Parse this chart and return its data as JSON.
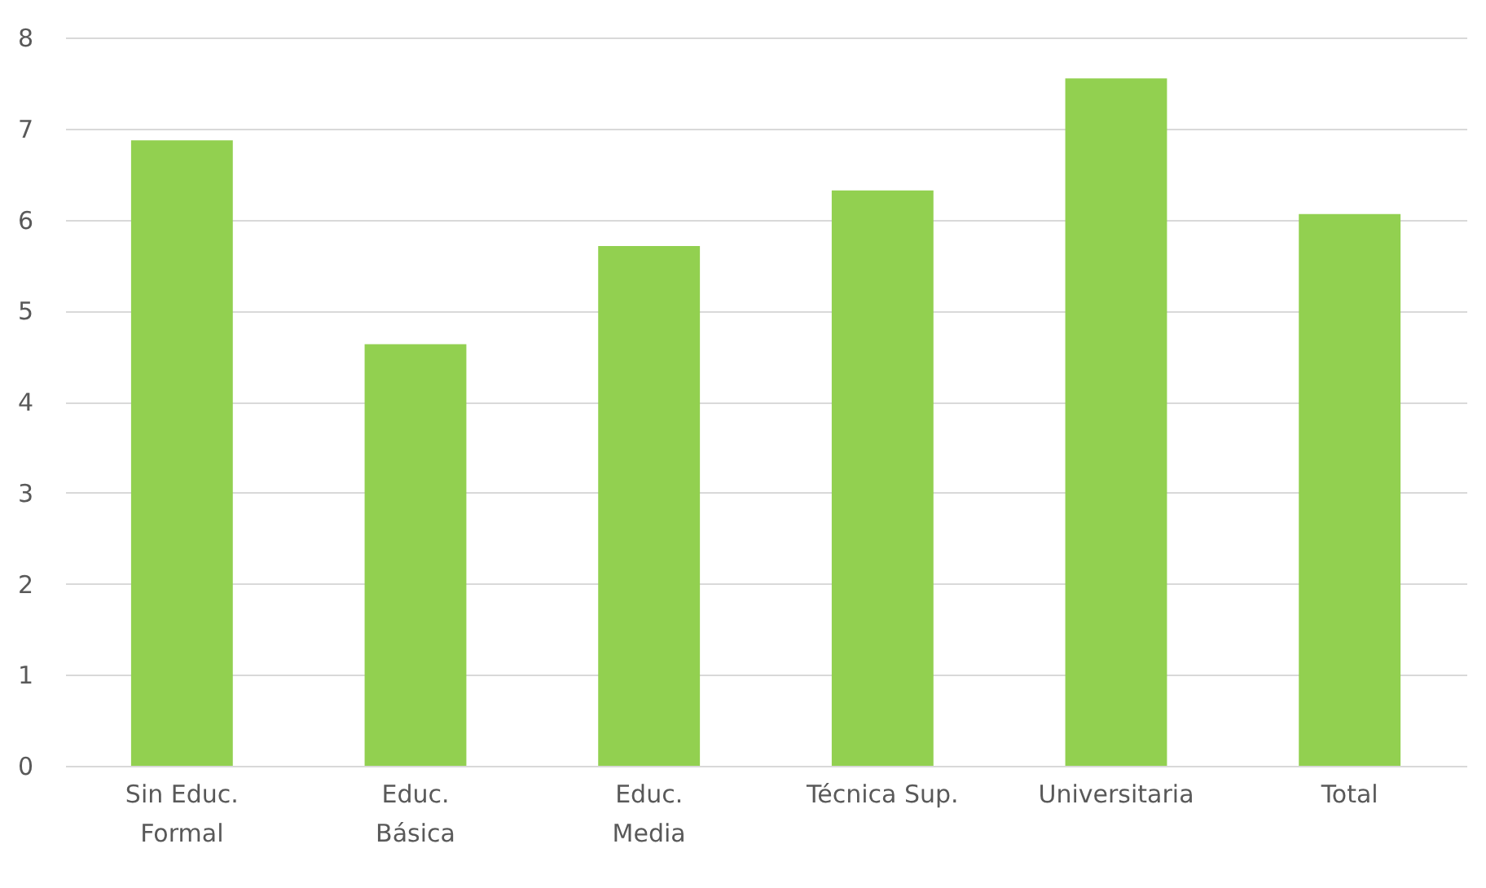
{
  "chart_data": {
    "type": "bar",
    "categories": [
      "Sin Educ.\nFormal",
      "Educ.\nBásica",
      "Educ.\nMedia",
      "Técnica Sup.",
      "Universitaria",
      "Total"
    ],
    "values": [
      6.87,
      4.63,
      5.71,
      6.32,
      7.55,
      6.06
    ],
    "color": "#92d050",
    "ylim": [
      0,
      8
    ],
    "yticks": [
      0,
      1,
      2,
      3,
      4,
      5,
      6,
      7,
      8
    ],
    "grid": "y"
  }
}
